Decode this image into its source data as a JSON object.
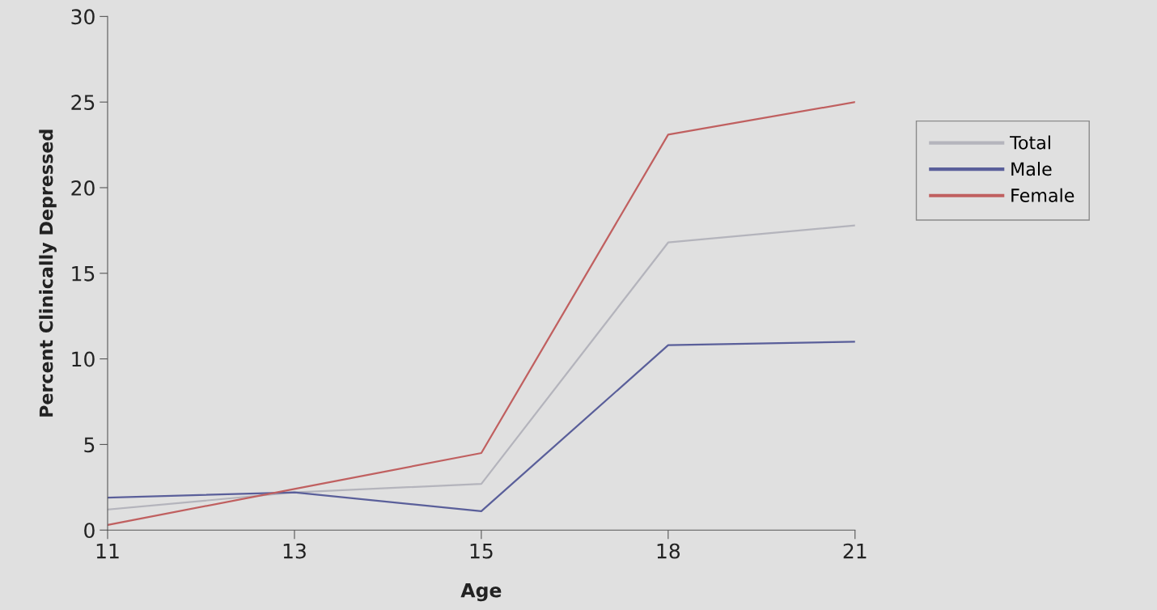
{
  "chart_data": {
    "type": "line",
    "xlabel": "Age",
    "ylabel": "Percent Clinically Depressed",
    "categories": [
      "11",
      "13",
      "15",
      "18",
      "21"
    ],
    "series": [
      {
        "name": "Total",
        "color": "#b4b4bc",
        "values": [
          1.2,
          2.2,
          2.7,
          16.8,
          17.8
        ]
      },
      {
        "name": "Male",
        "color": "#5a5f9a",
        "values": [
          1.9,
          2.2,
          1.1,
          10.8,
          11.0
        ]
      },
      {
        "name": "Female",
        "color": "#c06060",
        "values": [
          0.3,
          2.4,
          4.5,
          23.1,
          25.0
        ]
      }
    ],
    "ylim": [
      0,
      30
    ],
    "yticks": [
      0,
      5,
      10,
      15,
      20,
      25,
      30
    ],
    "grid": false,
    "legend": "right",
    "marker": "none",
    "line_style": "solid"
  }
}
